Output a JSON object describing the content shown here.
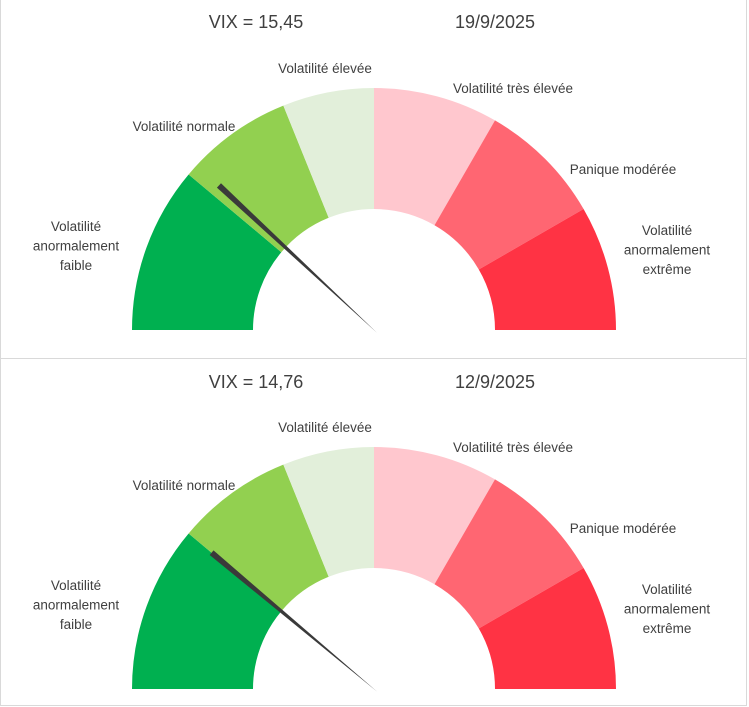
{
  "chart_data": [
    {
      "type": "gauge",
      "title": "VIX = 15,45",
      "date": "19/9/2025",
      "value": 15.45,
      "needle_angle_deg": 137,
      "segments": [
        {
          "label_lines": [
            "Volatilité",
            "anormalement",
            "faible"
          ],
          "start_deg": 180,
          "end_deg": 140,
          "color": "#00b050"
        },
        {
          "label_lines": [
            "Volatilité normale"
          ],
          "start_deg": 140,
          "end_deg": 112,
          "color": "#92d050"
        },
        {
          "label_lines": [
            "Volatilité élevée"
          ],
          "start_deg": 112,
          "end_deg": 90,
          "color": "#e2efda"
        },
        {
          "label_lines": [
            "Volatilité très élevée"
          ],
          "start_deg": 90,
          "end_deg": 60,
          "color": "#ffc7ce"
        },
        {
          "label_lines": [
            "Panique modérée"
          ],
          "start_deg": 60,
          "end_deg": 30,
          "color": "#ff6672"
        },
        {
          "label_lines": [
            "Volatilité",
            "anormalement",
            "extrême"
          ],
          "start_deg": 30,
          "end_deg": 0,
          "color": "#ff3344"
        }
      ]
    },
    {
      "type": "gauge",
      "title": "VIX = 14,76",
      "date": "12/9/2025",
      "value": 14.76,
      "needle_angle_deg": 140,
      "segments": [
        {
          "label_lines": [
            "Volatilité",
            "anormalement",
            "faible"
          ],
          "start_deg": 180,
          "end_deg": 140,
          "color": "#00b050"
        },
        {
          "label_lines": [
            "Volatilité normale"
          ],
          "start_deg": 140,
          "end_deg": 112,
          "color": "#92d050"
        },
        {
          "label_lines": [
            "Volatilité élevée"
          ],
          "start_deg": 112,
          "end_deg": 90,
          "color": "#e2efda"
        },
        {
          "label_lines": [
            "Volatilité très élevée"
          ],
          "start_deg": 90,
          "end_deg": 60,
          "color": "#ffc7ce"
        },
        {
          "label_lines": [
            "Panique modérée"
          ],
          "start_deg": 60,
          "end_deg": 30,
          "color": "#ff6672"
        },
        {
          "label_lines": [
            "Volatilité",
            "anormalement",
            "extrême"
          ],
          "start_deg": 30,
          "end_deg": 0,
          "color": "#ff3344"
        }
      ]
    }
  ]
}
